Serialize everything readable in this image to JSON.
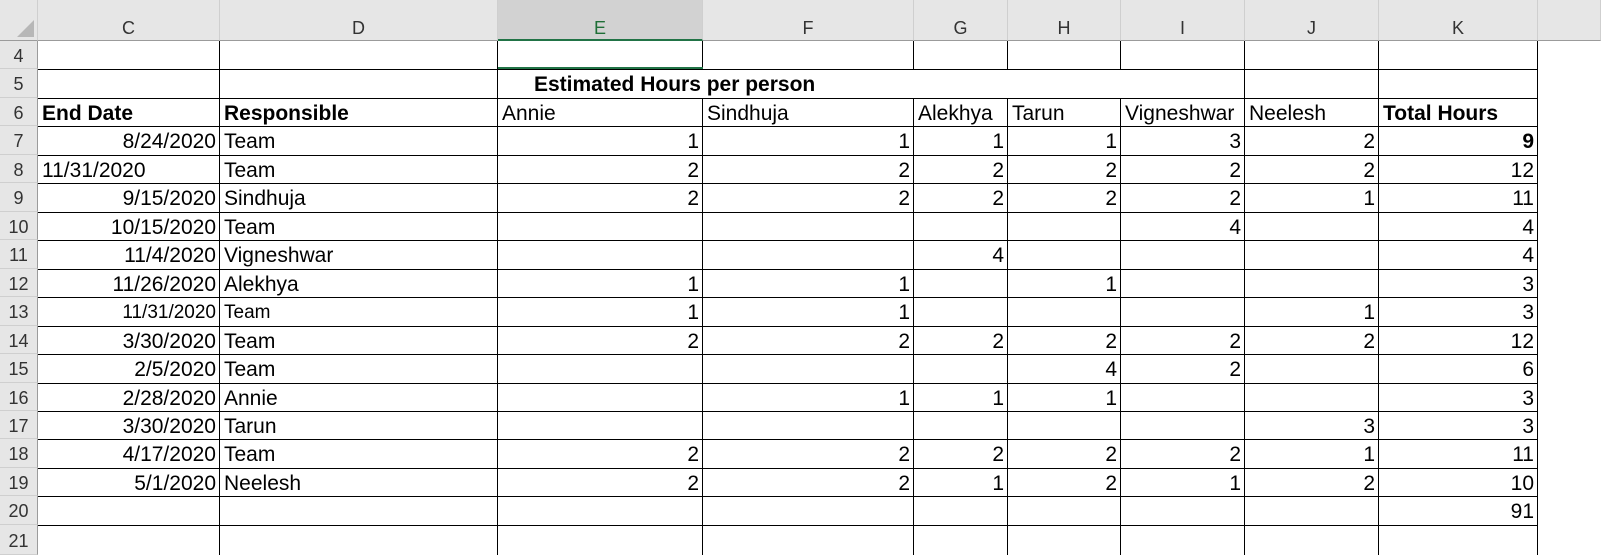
{
  "columns": [
    "C",
    "D",
    "E",
    "F",
    "G",
    "H",
    "I",
    "J",
    "K"
  ],
  "selected_column": "E",
  "rows": [
    4,
    5,
    6,
    7,
    8,
    9,
    10,
    11,
    12,
    13,
    14,
    15,
    16,
    17,
    18,
    19,
    20,
    21
  ],
  "section_title": "Estimated Hours per person",
  "headers": {
    "end_date": "End Date",
    "responsible": "Responsible",
    "annie": "Annie",
    "sindhuja": "Sindhuja",
    "alekhya": "Alekhya",
    "tarun": "Tarun",
    "vigneshwar": "Vigneshwar",
    "neelesh": "Neelesh",
    "total_hours": "Total Hours"
  },
  "data_rows": [
    {
      "row": 7,
      "end_date": "8/24/2020",
      "responsible": "Team",
      "annie": "1",
      "sindhuja": "1",
      "alekhya": "1",
      "tarun": "1",
      "vigneshwar": "3",
      "neelesh": "2",
      "total": "9",
      "total_bold": true
    },
    {
      "row": 8,
      "end_date": "11/31/2020",
      "end_date_left": true,
      "responsible": "Team",
      "annie": "2",
      "sindhuja": "2",
      "alekhya": "2",
      "tarun": "2",
      "vigneshwar": "2",
      "neelesh": "2",
      "total": "12"
    },
    {
      "row": 9,
      "end_date": "9/15/2020",
      "responsible": "Sindhuja",
      "annie": "2",
      "sindhuja": "2",
      "alekhya": "2",
      "tarun": "2",
      "vigneshwar": "2",
      "neelesh": "1",
      "total": "11"
    },
    {
      "row": 10,
      "end_date": "10/15/2020",
      "responsible": "Team",
      "annie": "",
      "sindhuja": "",
      "alekhya": "",
      "tarun": "",
      "vigneshwar": "4",
      "neelesh": "",
      "total": "4"
    },
    {
      "row": 11,
      "end_date": "11/4/2020",
      "responsible": "Vigneshwar",
      "annie": "",
      "sindhuja": "",
      "alekhya": "4",
      "tarun": "",
      "vigneshwar": "",
      "neelesh": "",
      "total": "4"
    },
    {
      "row": 12,
      "end_date": "11/26/2020",
      "responsible": "Alekhya",
      "annie": "1",
      "sindhuja": "1",
      "alekhya": "",
      "tarun": "1",
      "vigneshwar": "",
      "neelesh": "",
      "total": "3"
    },
    {
      "row": 13,
      "end_date": "11/31/2020",
      "responsible": "Team",
      "narrow": true,
      "annie": "1",
      "sindhuja": "1",
      "alekhya": "",
      "tarun": "",
      "vigneshwar": "",
      "neelesh": "1",
      "total": "3"
    },
    {
      "row": 14,
      "end_date": "3/30/2020",
      "responsible": "Team",
      "annie": "2",
      "sindhuja": "2",
      "alekhya": "2",
      "tarun": "2",
      "vigneshwar": "2",
      "neelesh": "2",
      "total": "12"
    },
    {
      "row": 15,
      "end_date": "2/5/2020",
      "responsible": "Team",
      "annie": "",
      "sindhuja": "",
      "alekhya": "",
      "tarun": "4",
      "vigneshwar": "2",
      "neelesh": "",
      "total": "6"
    },
    {
      "row": 16,
      "end_date": "2/28/2020",
      "responsible": "Annie",
      "annie": "",
      "sindhuja": "1",
      "alekhya": "1",
      "tarun": "1",
      "vigneshwar": "",
      "neelesh": "",
      "total": "3"
    },
    {
      "row": 17,
      "end_date": "3/30/2020",
      "responsible": "Tarun",
      "annie": "",
      "sindhuja": "",
      "alekhya": "",
      "tarun": "",
      "vigneshwar": "",
      "neelesh": "3",
      "total": "3"
    },
    {
      "row": 18,
      "end_date": "4/17/2020",
      "responsible": "Team",
      "annie": "2",
      "sindhuja": "2",
      "alekhya": "2",
      "tarun": "2",
      "vigneshwar": "2",
      "neelesh": "1",
      "total": "11"
    },
    {
      "row": 19,
      "end_date": "5/1/2020",
      "responsible": "Neelesh",
      "annie": "2",
      "sindhuja": "2",
      "alekhya": "1",
      "tarun": "2",
      "vigneshwar": "1",
      "neelesh": "2",
      "total": "10"
    }
  ],
  "grand_total": "91",
  "colors": {
    "header_bg": "#e6e6e6",
    "selected_header_bg": "#d2d2d2",
    "accent": "#217346",
    "grid": "#000000"
  }
}
